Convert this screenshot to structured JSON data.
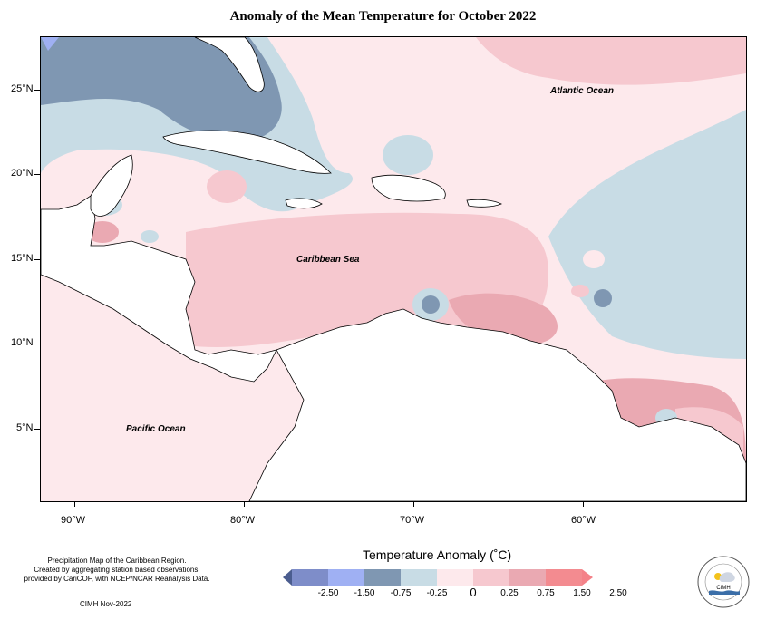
{
  "title": "Anomaly of the Mean Temperature for October 2022",
  "map": {
    "labels": {
      "atlantic": "Atlantic Ocean",
      "caribbean": "Caribbean Sea",
      "pacific": "Pacific Ocean"
    },
    "lat_ticks": [
      "25°N",
      "20°N",
      "15°N",
      "10°N",
      "5°N"
    ],
    "lon_ticks": [
      "90°W",
      "80°W",
      "70°W",
      "60°W"
    ]
  },
  "legend": {
    "title": "Temperature Anomaly (˚C)",
    "labels": [
      "-2.50",
      "-1.50",
      "-0.75",
      "-0.25",
      "0",
      "0.25",
      "0.75",
      "1.50",
      "2.50"
    ],
    "colors": [
      "#4b5d8f",
      "#7e8dc9",
      "#9fb0f3",
      "#7f97b2",
      "#c8dce5",
      "#fde9ec",
      "#f6c8cf",
      "#eaa9b2",
      "#f38b90",
      "#f48188"
    ]
  },
  "footnote": {
    "line1": "Precipitation Map of the Caribbean Region.",
    "line2": "Created by aggregating station based observations,",
    "line3": "provided by CariCOF, with NCEP/NCAR Reanalysis Data.",
    "credit": "CIMH Nov-2022"
  },
  "logo": {
    "text": "CIMH"
  }
}
